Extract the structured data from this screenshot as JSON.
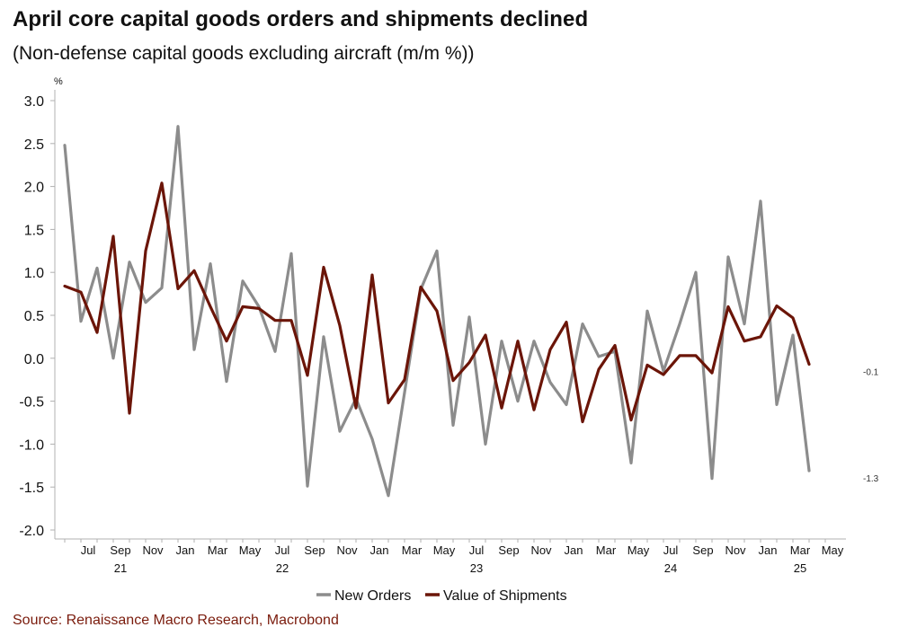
{
  "title": "April core capital goods orders and shipments declined",
  "subtitle": "(Non-defense capital goods excluding aircraft (m/m %))",
  "source": "Source: Renaissance Macro Research, Macrobond",
  "chart_data": {
    "type": "line",
    "y_unit": "%",
    "ylim": [
      -2.0,
      3.0
    ],
    "y_ticks": [
      "3.0",
      "2.5",
      "2.0",
      "1.5",
      "1.0",
      "0.5",
      "0.0",
      "-0.5",
      "-1.0",
      "-1.5",
      "-2.0"
    ],
    "x_start": "2021-06",
    "x_end": "2025-05",
    "x_tick_labels": [
      {
        "date": "2021-07",
        "label": "Jul"
      },
      {
        "date": "2021-09",
        "label": "Sep"
      },
      {
        "date": "2021-11",
        "label": "Nov"
      },
      {
        "date": "2022-01",
        "label": "Jan"
      },
      {
        "date": "2022-03",
        "label": "Mar"
      },
      {
        "date": "2022-05",
        "label": "May"
      },
      {
        "date": "2022-07",
        "label": "Jul"
      },
      {
        "date": "2022-09",
        "label": "Sep"
      },
      {
        "date": "2022-11",
        "label": "Nov"
      },
      {
        "date": "2023-01",
        "label": "Jan"
      },
      {
        "date": "2023-03",
        "label": "Mar"
      },
      {
        "date": "2023-05",
        "label": "May"
      },
      {
        "date": "2023-07",
        "label": "Jul"
      },
      {
        "date": "2023-09",
        "label": "Sep"
      },
      {
        "date": "2023-11",
        "label": "Nov"
      },
      {
        "date": "2024-01",
        "label": "Jan"
      },
      {
        "date": "2024-03",
        "label": "Mar"
      },
      {
        "date": "2024-05",
        "label": "May"
      },
      {
        "date": "2024-07",
        "label": "Jul"
      },
      {
        "date": "2024-09",
        "label": "Sep"
      },
      {
        "date": "2024-11",
        "label": "Nov"
      },
      {
        "date": "2025-01",
        "label": "Jan"
      },
      {
        "date": "2025-03",
        "label": "Mar"
      },
      {
        "date": "2025-05",
        "label": "May"
      }
    ],
    "year_labels": [
      {
        "date": "2021-09",
        "label": "21"
      },
      {
        "date": "2022-07",
        "label": "22"
      },
      {
        "date": "2023-07",
        "label": "23"
      },
      {
        "date": "2024-07",
        "label": "24"
      },
      {
        "date": "2025-03",
        "label": "25"
      }
    ],
    "dates": [
      "2021-06",
      "2021-07",
      "2021-08",
      "2021-09",
      "2021-10",
      "2021-11",
      "2021-12",
      "2022-01",
      "2022-02",
      "2022-03",
      "2022-04",
      "2022-05",
      "2022-06",
      "2022-07",
      "2022-08",
      "2022-09",
      "2022-10",
      "2022-11",
      "2022-12",
      "2023-01",
      "2023-02",
      "2023-03",
      "2023-04",
      "2023-05",
      "2023-06",
      "2023-07",
      "2023-08",
      "2023-09",
      "2023-10",
      "2023-11",
      "2023-12",
      "2024-01",
      "2024-02",
      "2024-03",
      "2024-04",
      "2024-05",
      "2024-06",
      "2024-07",
      "2024-08",
      "2024-09",
      "2024-10",
      "2024-11",
      "2024-12",
      "2025-01",
      "2025-02",
      "2025-03",
      "2025-04"
    ],
    "series": [
      {
        "name": "New Orders",
        "color": "#8c8c8c",
        "end_label": "-1.3",
        "values": [
          2.48,
          0.43,
          1.05,
          0.0,
          1.12,
          0.65,
          0.82,
          2.7,
          0.1,
          1.1,
          -0.27,
          0.9,
          0.6,
          0.08,
          1.22,
          -1.49,
          0.25,
          -0.85,
          -0.47,
          -0.94,
          -1.6,
          -0.4,
          0.8,
          1.25,
          -0.78,
          0.48,
          -1.0,
          0.2,
          -0.5,
          0.2,
          -0.28,
          -0.54,
          0.4,
          0.02,
          0.08,
          -1.22,
          0.55,
          -0.15,
          0.4,
          1.0,
          -1.4,
          1.18,
          0.4,
          1.83,
          -0.54,
          0.27,
          -1.31
        ]
      },
      {
        "name": "Value of Shipments",
        "color": "#6b1508",
        "end_label": "-0.1",
        "values": [
          0.84,
          0.77,
          0.3,
          1.42,
          -0.64,
          1.25,
          2.04,
          0.81,
          1.02,
          0.6,
          0.2,
          0.6,
          0.58,
          0.44,
          0.44,
          -0.2,
          1.06,
          0.38,
          -0.58,
          0.97,
          -0.52,
          -0.25,
          0.83,
          0.55,
          -0.26,
          -0.05,
          0.27,
          -0.58,
          0.2,
          -0.6,
          0.1,
          0.42,
          -0.74,
          -0.13,
          0.15,
          -0.72,
          -0.08,
          -0.19,
          0.03,
          0.03,
          -0.17,
          0.6,
          0.2,
          0.25,
          0.61,
          0.47,
          -0.07
        ]
      }
    ],
    "legend_position": "bottom-center",
    "grid": false
  }
}
